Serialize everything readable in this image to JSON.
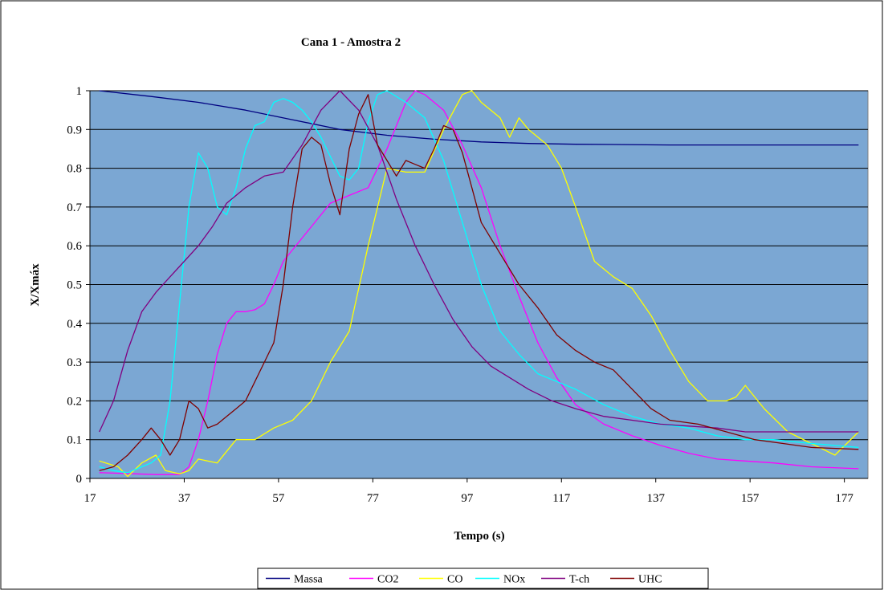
{
  "chart_data": {
    "type": "line",
    "title": "Cana 1 - Amostra 2",
    "xlabel": "Tempo (s)",
    "ylabel": "X/Xmáx",
    "xlim": [
      17,
      182
    ],
    "ylim": [
      0,
      1
    ],
    "x_ticks": [
      17,
      37,
      57,
      77,
      97,
      117,
      137,
      157,
      177
    ],
    "y_ticks": [
      0,
      0.1,
      0.2,
      0.3,
      0.4,
      0.5,
      0.6,
      0.7,
      0.8,
      0.9,
      1
    ],
    "grid": "horizontal",
    "legend_position": "bottom",
    "plot_background": "#7ba7d3",
    "series": [
      {
        "name": "Massa",
        "color": "#000080",
        "x": [
          19,
          30,
          40,
          50,
          60,
          70,
          80,
          90,
          100,
          110,
          120,
          130,
          140,
          150,
          160,
          170,
          180
        ],
        "y": [
          1.0,
          0.985,
          0.97,
          0.95,
          0.925,
          0.9,
          0.885,
          0.875,
          0.868,
          0.864,
          0.862,
          0.861,
          0.86,
          0.86,
          0.86,
          0.86,
          0.86
        ]
      },
      {
        "name": "CO2",
        "color": "#ff00ff",
        "x": [
          19,
          26,
          31,
          36,
          38,
          40,
          42,
          44,
          46,
          48,
          50,
          52,
          54,
          56,
          58,
          60,
          64,
          68,
          72,
          76,
          80,
          84,
          86,
          88,
          92,
          96,
          100,
          104,
          108,
          112,
          116,
          120,
          126,
          132,
          138,
          144,
          150,
          156,
          162,
          170,
          180
        ],
        "y": [
          0.015,
          0.012,
          0.01,
          0.01,
          0.03,
          0.1,
          0.2,
          0.32,
          0.4,
          0.43,
          0.43,
          0.435,
          0.45,
          0.5,
          0.56,
          0.59,
          0.65,
          0.71,
          0.73,
          0.75,
          0.85,
          0.97,
          1.0,
          0.99,
          0.95,
          0.86,
          0.75,
          0.6,
          0.47,
          0.35,
          0.26,
          0.19,
          0.14,
          0.11,
          0.085,
          0.065,
          0.05,
          0.045,
          0.04,
          0.03,
          0.025
        ]
      },
      {
        "name": "CO",
        "color": "#ffff00",
        "x": [
          19,
          23,
          25,
          28,
          31,
          33,
          36,
          38,
          40,
          44,
          48,
          52,
          56,
          60,
          64,
          68,
          72,
          76,
          80,
          84,
          88,
          92,
          96,
          98,
          100,
          104,
          106,
          108,
          110,
          114,
          117,
          120,
          124,
          128,
          132,
          136,
          140,
          144,
          148,
          152,
          154,
          156,
          160,
          165,
          170,
          175,
          180
        ],
        "y": [
          0.045,
          0.03,
          0.005,
          0.04,
          0.06,
          0.02,
          0.012,
          0.02,
          0.05,
          0.04,
          0.1,
          0.1,
          0.13,
          0.15,
          0.2,
          0.3,
          0.38,
          0.6,
          0.8,
          0.79,
          0.79,
          0.9,
          0.99,
          1.0,
          0.97,
          0.93,
          0.88,
          0.93,
          0.9,
          0.86,
          0.8,
          0.7,
          0.56,
          0.52,
          0.49,
          0.42,
          0.33,
          0.25,
          0.2,
          0.2,
          0.21,
          0.24,
          0.18,
          0.12,
          0.09,
          0.06,
          0.12
        ]
      },
      {
        "name": "NOx",
        "color": "#00ffff",
        "x": [
          19,
          22,
          25,
          28,
          30,
          32,
          34,
          36,
          38,
          40,
          42,
          44,
          46,
          48,
          50,
          52,
          54,
          56,
          58,
          60,
          62,
          64,
          66,
          68,
          70,
          72,
          74,
          76,
          78,
          80,
          84,
          88,
          92,
          96,
          100,
          104,
          108,
          112,
          116,
          120,
          126,
          132,
          138,
          144,
          150,
          156,
          162,
          170,
          180
        ],
        "y": [
          0.03,
          0.02,
          0.015,
          0.03,
          0.04,
          0.06,
          0.2,
          0.45,
          0.7,
          0.84,
          0.8,
          0.7,
          0.68,
          0.75,
          0.85,
          0.91,
          0.92,
          0.97,
          0.98,
          0.97,
          0.95,
          0.92,
          0.88,
          0.83,
          0.78,
          0.77,
          0.8,
          0.92,
          0.99,
          1.0,
          0.97,
          0.93,
          0.82,
          0.66,
          0.5,
          0.38,
          0.32,
          0.27,
          0.25,
          0.23,
          0.19,
          0.16,
          0.14,
          0.13,
          0.11,
          0.1,
          0.1,
          0.09,
          0.08
        ]
      },
      {
        "name": "T-ch",
        "color": "#800080",
        "x": [
          19,
          22,
          25,
          28,
          31,
          34,
          37,
          40,
          43,
          46,
          50,
          54,
          58,
          62,
          66,
          70,
          74,
          78,
          82,
          86,
          90,
          94,
          98,
          102,
          106,
          110,
          115,
          120,
          126,
          132,
          138,
          144,
          150,
          156,
          162,
          170,
          180
        ],
        "y": [
          0.12,
          0.2,
          0.33,
          0.43,
          0.48,
          0.52,
          0.56,
          0.6,
          0.65,
          0.71,
          0.75,
          0.78,
          0.79,
          0.86,
          0.95,
          1.0,
          0.95,
          0.86,
          0.72,
          0.6,
          0.5,
          0.41,
          0.34,
          0.29,
          0.26,
          0.23,
          0.2,
          0.18,
          0.16,
          0.15,
          0.14,
          0.135,
          0.13,
          0.12,
          0.12,
          0.12,
          0.12
        ]
      },
      {
        "name": "UHC",
        "color": "#800000",
        "x": [
          19,
          22,
          25,
          28,
          30,
          32,
          34,
          36,
          38,
          40,
          42,
          44,
          46,
          48,
          50,
          52,
          54,
          56,
          58,
          60,
          62,
          64,
          66,
          68,
          70,
          72,
          74,
          76,
          78,
          80,
          82,
          84,
          86,
          88,
          90,
          92,
          94,
          96,
          98,
          100,
          104,
          108,
          112,
          116,
          120,
          124,
          128,
          132,
          136,
          140,
          146,
          152,
          158,
          164,
          170,
          180
        ],
        "y": [
          0.02,
          0.03,
          0.06,
          0.1,
          0.13,
          0.1,
          0.06,
          0.1,
          0.2,
          0.18,
          0.13,
          0.14,
          0.16,
          0.18,
          0.2,
          0.25,
          0.3,
          0.35,
          0.5,
          0.7,
          0.85,
          0.88,
          0.86,
          0.76,
          0.68,
          0.85,
          0.94,
          0.99,
          0.86,
          0.82,
          0.78,
          0.82,
          0.81,
          0.8,
          0.85,
          0.91,
          0.9,
          0.84,
          0.75,
          0.66,
          0.58,
          0.5,
          0.44,
          0.37,
          0.33,
          0.3,
          0.28,
          0.23,
          0.18,
          0.15,
          0.14,
          0.12,
          0.1,
          0.09,
          0.08,
          0.075
        ]
      }
    ]
  }
}
